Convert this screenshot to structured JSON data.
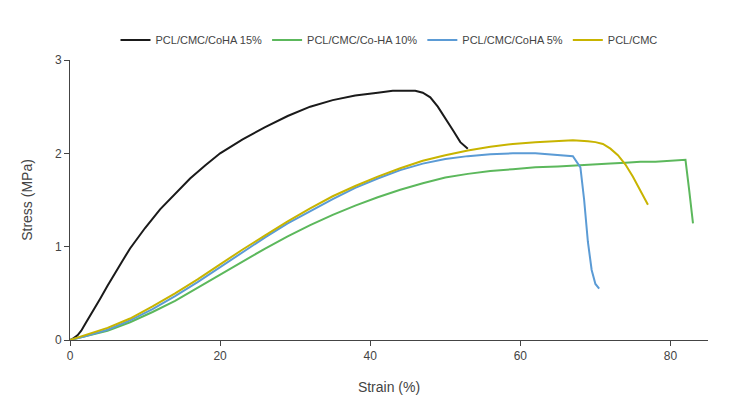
{
  "chart_data": {
    "type": "line",
    "xlabel": "Strain (%)",
    "ylabel": "Stress (MPa)",
    "xlim": [
      0,
      85
    ],
    "ylim": [
      0,
      3
    ],
    "xticks": [
      0,
      20,
      40,
      60,
      80
    ],
    "yticks": [
      0,
      1,
      2,
      3
    ],
    "grid": false,
    "legend": "top",
    "series": [
      {
        "name": "PCL/CMC/CoHA 15%",
        "color": "#1a1a1a",
        "x": [
          0,
          0.5,
          1,
          1.5,
          2,
          3,
          4,
          5,
          6,
          7,
          8,
          9,
          10,
          12,
          14,
          16,
          18,
          20,
          23,
          26,
          29,
          32,
          35,
          38,
          41,
          43,
          45,
          46,
          47,
          48,
          49,
          50,
          51,
          52,
          53
        ],
        "values": [
          0,
          0.02,
          0.05,
          0.1,
          0.17,
          0.3,
          0.44,
          0.58,
          0.72,
          0.85,
          0.98,
          1.09,
          1.2,
          1.4,
          1.57,
          1.73,
          1.87,
          2.0,
          2.15,
          2.28,
          2.4,
          2.5,
          2.57,
          2.62,
          2.65,
          2.67,
          2.67,
          2.67,
          2.65,
          2.6,
          2.5,
          2.38,
          2.25,
          2.12,
          2.05
        ]
      },
      {
        "name": "PCL/CMC/Co-HA 10%",
        "color": "#5cb85c",
        "x": [
          0,
          2,
          5,
          8,
          11,
          14,
          17,
          20,
          23,
          26,
          29,
          32,
          35,
          38,
          41,
          44,
          47,
          50,
          53,
          56,
          59,
          62,
          65,
          68,
          70,
          72,
          74,
          76,
          78,
          80,
          81,
          81.5,
          82,
          82.5,
          83
        ],
        "values": [
          0,
          0.04,
          0.1,
          0.19,
          0.3,
          0.42,
          0.56,
          0.7,
          0.84,
          0.98,
          1.11,
          1.23,
          1.34,
          1.44,
          1.53,
          1.61,
          1.68,
          1.74,
          1.78,
          1.81,
          1.83,
          1.85,
          1.86,
          1.87,
          1.88,
          1.89,
          1.9,
          1.91,
          1.91,
          1.92,
          1.93,
          1.93,
          1.93,
          1.6,
          1.25
        ]
      },
      {
        "name": "PCL/CMC/CoHA 5%",
        "color": "#5b9bd5",
        "x": [
          0,
          2,
          5,
          8,
          11,
          14,
          17,
          20,
          23,
          26,
          29,
          32,
          35,
          38,
          41,
          44,
          47,
          50,
          53,
          56,
          59,
          62,
          64,
          66,
          67,
          68,
          68.5,
          69,
          69.5,
          70,
          70.5
        ],
        "values": [
          0,
          0.04,
          0.11,
          0.21,
          0.33,
          0.47,
          0.62,
          0.78,
          0.94,
          1.1,
          1.25,
          1.38,
          1.51,
          1.63,
          1.73,
          1.82,
          1.89,
          1.94,
          1.97,
          1.99,
          2.0,
          2.0,
          1.99,
          1.98,
          1.97,
          1.85,
          1.5,
          1.05,
          0.75,
          0.6,
          0.55
        ]
      },
      {
        "name": "PCL/CMC",
        "color": "#c8b400",
        "x": [
          0,
          2,
          5,
          8,
          11,
          14,
          17,
          20,
          23,
          26,
          29,
          32,
          35,
          38,
          41,
          44,
          47,
          50,
          53,
          56,
          59,
          62,
          65,
          67,
          69,
          70,
          71,
          72,
          73,
          74,
          75,
          76,
          77
        ],
        "values": [
          0,
          0.05,
          0.13,
          0.23,
          0.36,
          0.5,
          0.65,
          0.81,
          0.97,
          1.12,
          1.27,
          1.41,
          1.54,
          1.65,
          1.75,
          1.84,
          1.92,
          1.98,
          2.03,
          2.07,
          2.1,
          2.12,
          2.13,
          2.14,
          2.13,
          2.12,
          2.1,
          2.05,
          1.98,
          1.88,
          1.75,
          1.6,
          1.45
        ]
      }
    ]
  }
}
